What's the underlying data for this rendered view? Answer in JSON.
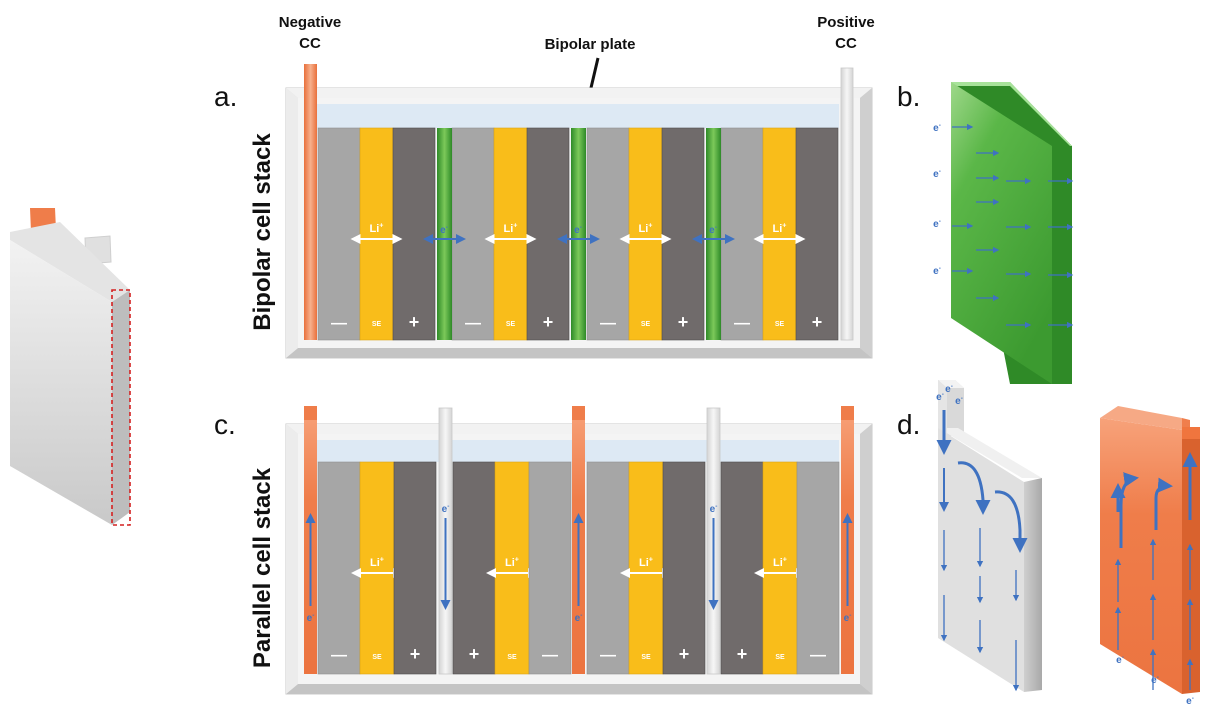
{
  "labels": {
    "negative_cc_line1": "Negative",
    "negative_cc_line2": "CC",
    "positive_cc_line1": "Positive",
    "positive_cc_line2": "CC",
    "bipolar_plate": "Bipolar plate",
    "panel_a": "a.",
    "panel_b": "b.",
    "panel_c": "c.",
    "panel_d": "d.",
    "bipolar_stack_title": "Bipolar cell stack",
    "parallel_stack_title": "Parallel cell stack"
  },
  "symbols": {
    "lithium_ion": "Li",
    "ion_charge": "+",
    "electron": "e",
    "electron_charge": "-",
    "minus": "—",
    "plus": "+",
    "solid_electrolyte": "SE"
  },
  "colors": {
    "anode": "#a6a6a6",
    "cathode": "#706b6b",
    "electrolyte": "#f9bd1a",
    "current_collector_negative": "#ef7d4a",
    "current_collector_positive": "#e5e5e5",
    "bipolar_plate": "#4caa3c",
    "electron_arrow": "#3f72c1",
    "ion_arrow": "#ffffff",
    "housing": "#e3e3e3",
    "headspace": "#dde9f4"
  }
}
